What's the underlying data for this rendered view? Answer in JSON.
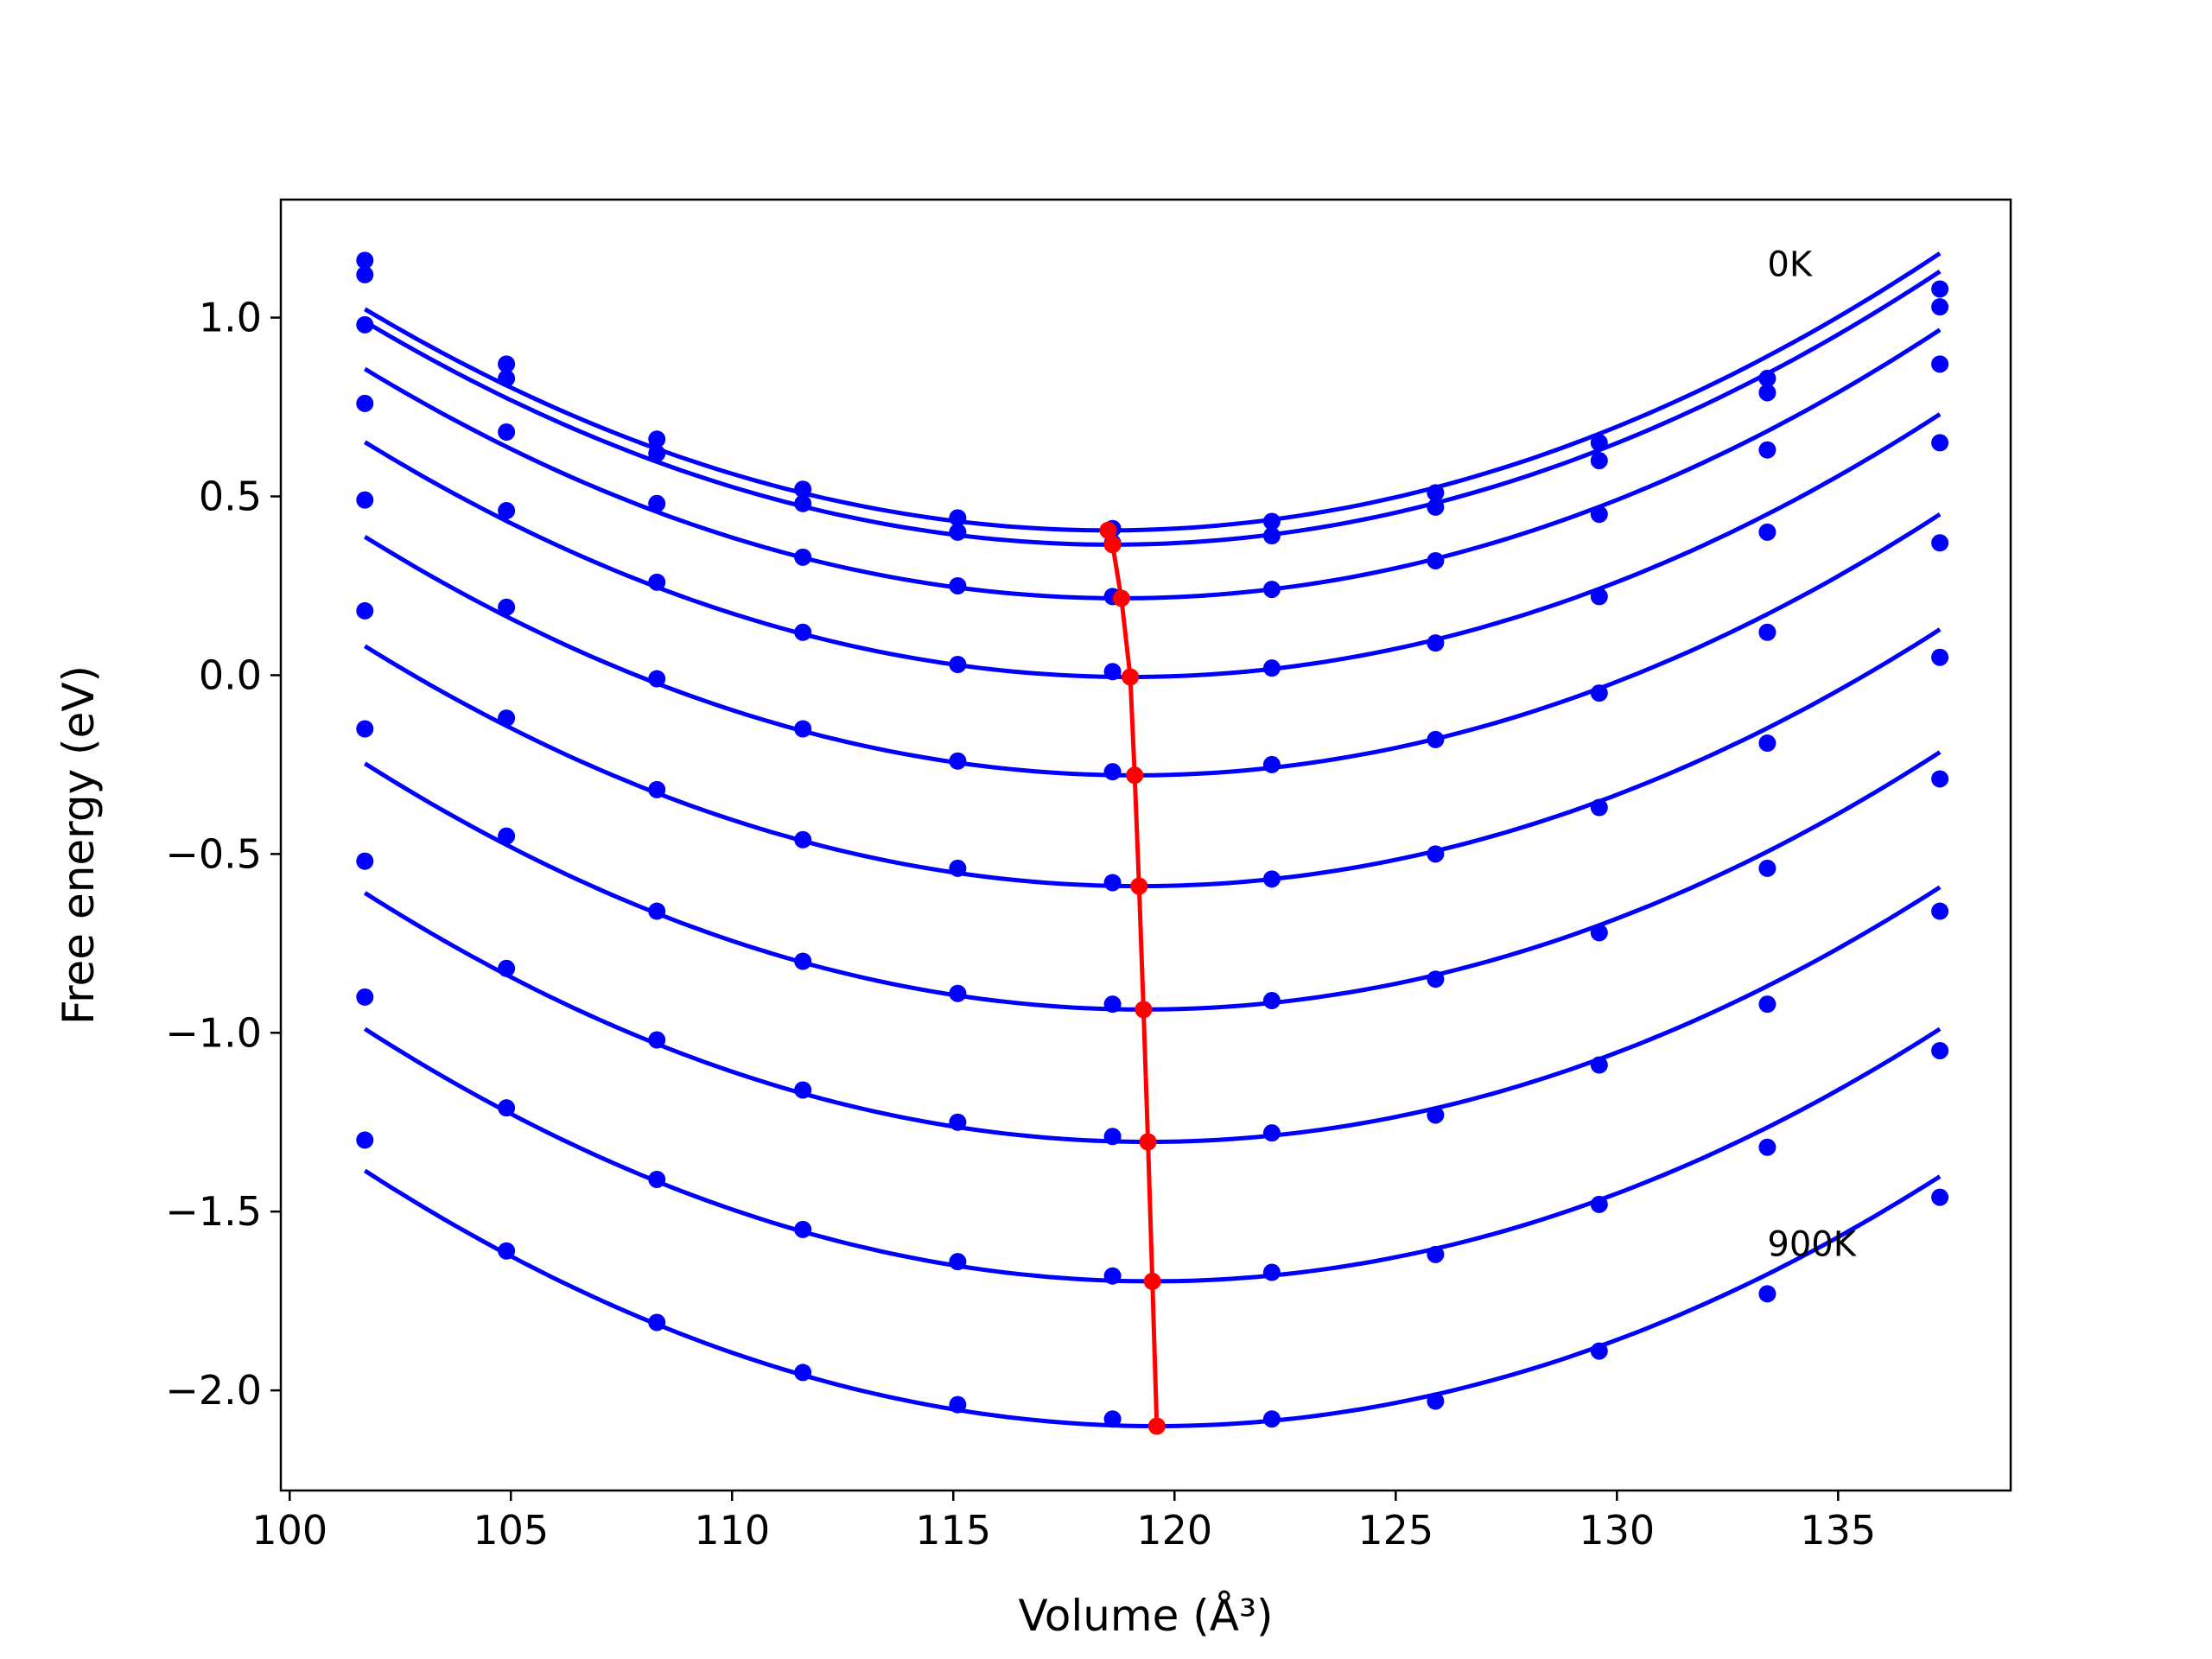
{
  "chart_data": {
    "type": "line",
    "xlabel": "Volume (Å³)",
    "ylabel": "Free energy (eV)",
    "xlim": [
      99.8,
      138.9
    ],
    "ylim": [
      -2.28,
      1.33
    ],
    "xticks": [
      100,
      105,
      110,
      115,
      120,
      125,
      130,
      135
    ],
    "xtick_labels": [
      "100",
      "105",
      "110",
      "115",
      "120",
      "125",
      "130",
      "135"
    ],
    "yticks": [
      1.0,
      0.5,
      0.0,
      -0.5,
      -1.0,
      -1.5,
      -2.0
    ],
    "ytick_labels": [
      "1.0",
      "0.5",
      "0.0",
      "−0.5",
      "−1.0",
      "−1.5",
      "−2.0"
    ],
    "grid": false,
    "legend": null,
    "annotations": [
      {
        "text": "0K",
        "x": 133.4,
        "y": 1.15
      },
      {
        "text": "900K",
        "x": 133.4,
        "y": -1.59
      }
    ],
    "volumes": [
      101.7,
      104.9,
      108.3,
      111.6,
      115.1,
      118.6,
      122.2,
      125.9,
      129.6,
      133.4,
      137.3
    ],
    "curve_color": "#0000ff",
    "minimum_color": "#ff0000",
    "series": [
      {
        "values": [
          1.16,
          0.87,
          0.66,
          0.52,
          0.44,
          0.41,
          0.43,
          0.51,
          0.65,
          0.83,
          1.08
        ],
        "fit_min_volume": 118.5,
        "fit_min_energy": 0.405
      },
      {
        "values": [
          1.12,
          0.83,
          0.62,
          0.48,
          0.4,
          0.37,
          0.39,
          0.47,
          0.6,
          0.79,
          1.03
        ],
        "fit_min_volume": 118.6,
        "fit_min_energy": 0.365
      },
      {
        "values": [
          0.98,
          0.68,
          0.48,
          0.33,
          0.25,
          0.22,
          0.24,
          0.32,
          0.45,
          0.63,
          0.87
        ],
        "fit_min_volume": 118.8,
        "fit_min_energy": 0.215
      },
      {
        "values": [
          0.76,
          0.46,
          0.26,
          0.12,
          0.03,
          0.01,
          0.02,
          0.09,
          0.22,
          0.4,
          0.65
        ],
        "fit_min_volume": 119.0,
        "fit_min_energy": -0.005
      },
      {
        "values": [
          0.49,
          0.19,
          -0.01,
          -0.15,
          -0.24,
          -0.27,
          -0.25,
          -0.18,
          -0.05,
          0.12,
          0.37
        ],
        "fit_min_volume": 119.1,
        "fit_min_energy": -0.28
      },
      {
        "values": [
          0.18,
          -0.12,
          -0.32,
          -0.46,
          -0.54,
          -0.58,
          -0.57,
          -0.5,
          -0.37,
          -0.19,
          0.05
        ],
        "fit_min_volume": 119.2,
        "fit_min_energy": -0.59
      },
      {
        "values": [
          -0.15,
          -0.45,
          -0.66,
          -0.8,
          -0.89,
          -0.92,
          -0.91,
          -0.85,
          -0.72,
          -0.54,
          -0.29
        ],
        "fit_min_volume": 119.3,
        "fit_min_energy": -0.935
      },
      {
        "values": [
          -0.52,
          -0.82,
          -1.02,
          -1.16,
          -1.25,
          -1.29,
          -1.28,
          -1.23,
          -1.09,
          -0.92,
          -0.66
        ],
        "fit_min_volume": 119.4,
        "fit_min_energy": -1.305
      },
      {
        "values": [
          -0.9,
          -1.21,
          -1.41,
          -1.55,
          -1.64,
          -1.68,
          -1.67,
          -1.62,
          -1.48,
          -1.32,
          -1.05
        ],
        "fit_min_volume": 119.5,
        "fit_min_energy": -1.695
      },
      {
        "values": [
          -1.3,
          -1.61,
          -1.81,
          -1.95,
          -2.04,
          -2.08,
          -2.08,
          -2.03,
          -1.89,
          -1.73,
          -1.46
        ],
        "fit_min_volume": 119.6,
        "fit_min_energy": -2.1
      }
    ]
  }
}
